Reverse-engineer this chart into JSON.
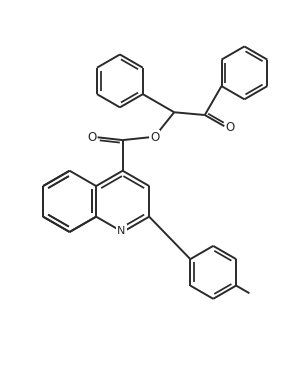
{
  "background_color": "#ffffff",
  "line_color": "#2a2a2a",
  "line_width": 1.4,
  "figsize": [
    2.84,
    3.86
  ],
  "dpi": 100,
  "xlim": [
    0,
    10
  ],
  "ylim": [
    0,
    13.6
  ]
}
